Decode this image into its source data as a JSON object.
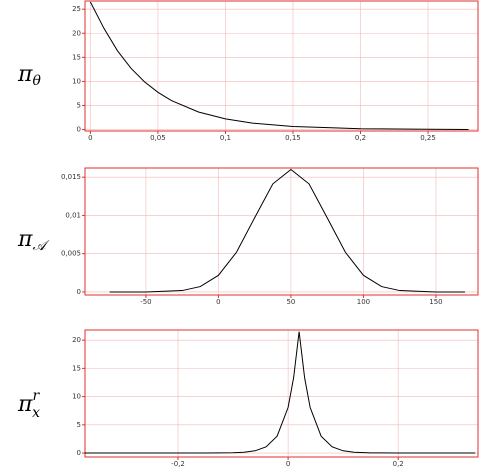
{
  "chart_data": [
    {
      "type": "line",
      "label": {
        "base": "π",
        "sub": "θ"
      },
      "color": "#000000",
      "grid": true,
      "x": [
        0,
        0.01,
        0.02,
        0.03,
        0.04,
        0.05,
        0.06,
        0.08,
        0.1,
        0.12,
        0.15,
        0.2,
        0.25,
        0.28
      ],
      "values": [
        26.5,
        21.03,
        16.38,
        12.75,
        9.93,
        7.74,
        6.02,
        3.65,
        2.22,
        1.34,
        0.64,
        0.18,
        0.05,
        0.02
      ],
      "xlim": [
        -0.004,
        0.287
      ],
      "ylim": [
        -0.3,
        26.7
      ],
      "xticks": [
        0,
        {
          "value": 0.05,
          "label": "0,05"
        },
        {
          "value": 0.1,
          "label": "0,1"
        },
        {
          "value": 0.15,
          "label": "0,15"
        },
        {
          "value": 0.2,
          "label": "0,2"
        },
        {
          "value": 0.25,
          "label": "0,25"
        }
      ],
      "yticks": [
        0,
        5,
        10,
        15,
        20,
        25
      ]
    },
    {
      "type": "line",
      "label": {
        "base": "π",
        "sub": "𝒜"
      },
      "color": "#000000",
      "grid": true,
      "x": [
        -75,
        -50,
        -25,
        -12.5,
        0,
        12.5,
        25,
        37.5,
        50,
        62.5,
        75,
        87.5,
        100,
        112.5,
        125,
        150,
        170
      ],
      "values": [
        0,
        0,
        0.00018,
        0.0007,
        0.00217,
        0.0052,
        0.0097,
        0.01412,
        0.016,
        0.01412,
        0.0097,
        0.0052,
        0.00217,
        0.0007,
        0.00018,
        0,
        0
      ],
      "xlim": [
        -92,
        179
      ],
      "ylim": [
        -0.0004,
        0.0162
      ],
      "xticks": [
        -50,
        0,
        50,
        100,
        150
      ],
      "yticks": [
        0,
        {
          "value": 0.005,
          "label": "0,005"
        },
        {
          "value": 0.01,
          "label": "0,01"
        },
        {
          "value": 0.015,
          "label": "0,015"
        }
      ]
    },
    {
      "type": "line",
      "label": {
        "base": "π",
        "sub": "x",
        "sup": "r"
      },
      "color": "#000000",
      "grid": true,
      "x": [
        -0.37,
        -0.3,
        -0.2,
        -0.15,
        -0.1,
        -0.08,
        -0.06,
        -0.04,
        -0.02,
        0,
        0.01,
        0.02,
        0.03,
        0.04,
        0.06,
        0.08,
        0.1,
        0.12,
        0.15,
        0.2,
        0.3,
        0.34
      ],
      "values": [
        0,
        0,
        0,
        0.004,
        0.05,
        0.15,
        0.4,
        1.1,
        2.98,
        8.09,
        13.34,
        21.5,
        13.34,
        8.09,
        2.98,
        1.1,
        0.4,
        0.15,
        0.04,
        0.003,
        0,
        0
      ],
      "xlim": [
        -0.369,
        0.345
      ],
      "ylim": [
        -0.7,
        21.8
      ],
      "xticks": [
        {
          "value": -0.2,
          "label": "-0,2"
        },
        0,
        {
          "value": 0.2,
          "label": "0,2"
        }
      ],
      "yticks": [
        0,
        5,
        10,
        15,
        20
      ]
    }
  ]
}
